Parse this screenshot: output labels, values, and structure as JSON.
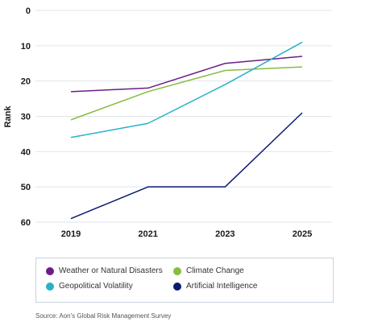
{
  "chart_data": {
    "type": "line",
    "ylabel": "Rank",
    "xlabel": "",
    "x": [
      "2019",
      "2021",
      "2023",
      "2025"
    ],
    "ylim": [
      0,
      60
    ],
    "y_inverted": true,
    "yticks": [
      "0",
      "10",
      "20",
      "30",
      "40",
      "50",
      "60"
    ],
    "grid": true,
    "legend_position": "bottom",
    "series": [
      {
        "name": "Weather or Natural Disasters",
        "color": "#6b1d8a",
        "values": [
          23,
          22,
          15,
          13
        ]
      },
      {
        "name": "Climate Change",
        "color": "#86bc40",
        "values": [
          31,
          23,
          17,
          16
        ]
      },
      {
        "name": "Geopolitical Volatility",
        "color": "#29b1c9",
        "values": [
          36,
          32,
          21,
          9
        ]
      },
      {
        "name": "Artificial Intelligence",
        "color": "#0b1b6e",
        "values": [
          59,
          50,
          50,
          29
        ]
      }
    ]
  },
  "source": "Source: Aon's Global Risk Management Survey"
}
